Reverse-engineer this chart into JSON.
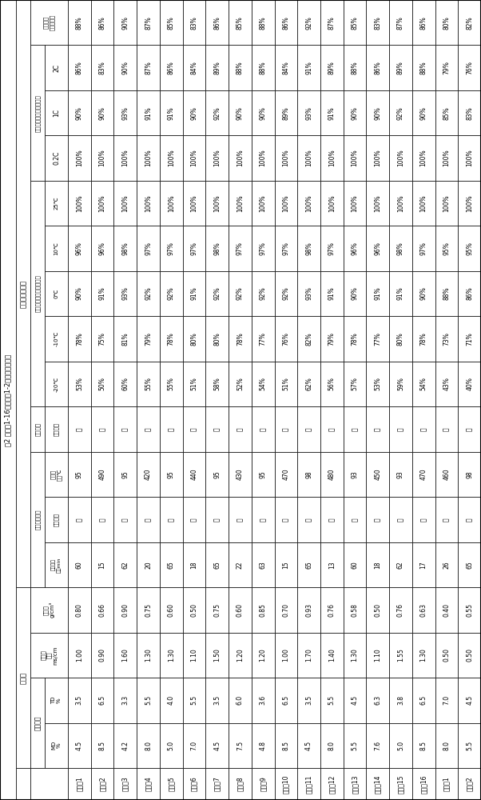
{
  "title": "表2 实施例1-16和对比例1-2的性能测试结果",
  "samples": [
    "实施例1",
    "实施例2",
    "实施例3",
    "实施例4",
    "实施例5",
    "实施例6",
    "实施例7",
    "实施例8",
    "实施例9",
    "实施例10",
    "实施例11",
    "实施例12",
    "实施例13",
    "实施例14",
    "实施例15",
    "实施例16",
    "对比例1",
    "对比例2"
  ],
  "table_data": {
    "MD": [
      "4.5",
      "8.5",
      "4.2",
      "8.0",
      "5.0",
      "7.0",
      "4.5",
      "7.5",
      "4.8",
      "8.5",
      "4.5",
      "8.0",
      "5.5",
      "7.6",
      "5.0",
      "8.5",
      "8.0",
      "5.5"
    ],
    "TD": [
      "3.5",
      "6.5",
      "3.3",
      "5.5",
      "4.0",
      "5.5",
      "3.5",
      "6.0",
      "3.6",
      "6.5",
      "3.5",
      "5.5",
      "4.5",
      "6.3",
      "3.8",
      "6.5",
      "7.0",
      "4.5"
    ],
    "ion_cond": [
      "1.00",
      "0.90",
      "1.60",
      "1.30",
      "1.30",
      "1.10",
      "1.50",
      "1.20",
      "1.20",
      "1.00",
      "1.70",
      "1.40",
      "1.30",
      "1.10",
      "1.55",
      "1.30",
      "0.50",
      "0.50"
    ],
    "liq_abs": [
      "0.80",
      "0.66",
      "0.90",
      "0.75",
      "0.60",
      "0.50",
      "0.75",
      "0.60",
      "0.85",
      "0.70",
      "0.93",
      "0.76",
      "0.58",
      "0.50",
      "0.76",
      "0.63",
      "0.40",
      "0.55"
    ],
    "overcharge_time": [
      "60",
      "15",
      "62",
      "20",
      "65",
      "18",
      "65",
      "22",
      "63",
      "15",
      "65",
      "13",
      "60",
      "18",
      "62",
      "17",
      "26",
      "65"
    ],
    "overcharge_ignite": [
      "否",
      "是",
      "否",
      "是",
      "否",
      "是",
      "否",
      "是",
      "否",
      "是",
      "否",
      "是",
      "否",
      "是",
      "否",
      "是",
      "是",
      "否"
    ],
    "overcharge_temp": [
      "95",
      "490",
      "95",
      "420",
      "95",
      "440",
      "95",
      "430",
      "95",
      "470",
      "98",
      "480",
      "93",
      "450",
      "93",
      "470",
      "460",
      "98"
    ],
    "thermal_ignite": [
      "否",
      "否",
      "否",
      "否",
      "否",
      "否",
      "否",
      "否",
      "否",
      "否",
      "否",
      "否",
      "否",
      "否",
      "否",
      "否",
      "是",
      "否"
    ],
    "t_neg20": [
      "53%",
      "50%",
      "60%",
      "55%",
      "55%",
      "51%",
      "58%",
      "52%",
      "54%",
      "51%",
      "62%",
      "56%",
      "57%",
      "53%",
      "59%",
      "54%",
      "43%",
      "40%"
    ],
    "t_neg10": [
      "78%",
      "75%",
      "81%",
      "79%",
      "78%",
      "80%",
      "80%",
      "78%",
      "77%",
      "76%",
      "82%",
      "79%",
      "78%",
      "77%",
      "80%",
      "78%",
      "73%",
      "71%"
    ],
    "t_0": [
      "90%",
      "91%",
      "93%",
      "92%",
      "92%",
      "91%",
      "92%",
      "92%",
      "92%",
      "92%",
      "93%",
      "91%",
      "90%",
      "91%",
      "91%",
      "90%",
      "88%",
      "86%"
    ],
    "t_10": [
      "96%",
      "96%",
      "98%",
      "97%",
      "97%",
      "97%",
      "98%",
      "97%",
      "97%",
      "97%",
      "98%",
      "97%",
      "96%",
      "96%",
      "98%",
      "97%",
      "95%",
      "95%"
    ],
    "t_25": [
      "100%",
      "100%",
      "100%",
      "100%",
      "100%",
      "100%",
      "100%",
      "100%",
      "100%",
      "100%",
      "100%",
      "100%",
      "100%",
      "100%",
      "100%",
      "100%",
      "100%",
      "100%"
    ],
    "rate_02c": [
      "100%",
      "100%",
      "100%",
      "100%",
      "100%",
      "100%",
      "100%",
      "100%",
      "100%",
      "100%",
      "100%",
      "100%",
      "100%",
      "100%",
      "100%",
      "100%",
      "100%",
      "100%"
    ],
    "rate_1c": [
      "90%",
      "90%",
      "93%",
      "91%",
      "91%",
      "90%",
      "92%",
      "90%",
      "90%",
      "89%",
      "93%",
      "91%",
      "90%",
      "90%",
      "92%",
      "90%",
      "85%",
      "83%"
    ],
    "rate_2c": [
      "86%",
      "83%",
      "90%",
      "87%",
      "86%",
      "84%",
      "89%",
      "88%",
      "88%",
      "84%",
      "91%",
      "89%",
      "88%",
      "86%",
      "89%",
      "88%",
      "79%",
      "76%"
    ],
    "room_cycle": [
      "88%",
      "86%",
      "90%",
      "87%",
      "85%",
      "83%",
      "86%",
      "85%",
      "88%",
      "86%",
      "92%",
      "87%",
      "85%",
      "83%",
      "87%",
      "86%",
      "80%",
      "82%"
    ]
  }
}
